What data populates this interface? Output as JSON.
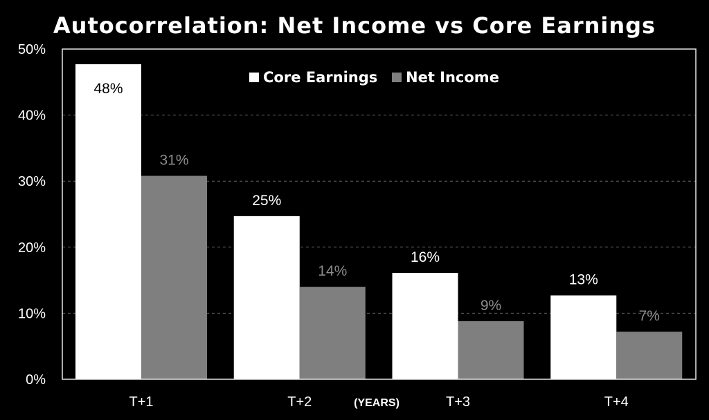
{
  "chart_data": {
    "type": "bar",
    "title": "Autocorrelation: Net Income vs Core Earnings",
    "xlabel": "(YEARS)",
    "ylabel": "",
    "categories": [
      "T+1",
      "T+2",
      "T+3",
      "T+4"
    ],
    "series": [
      {
        "name": "Core Earnings",
        "values": [
          47.7,
          24.7,
          16.1,
          12.7
        ],
        "labels": [
          "48%",
          "25%",
          "16%",
          "13%"
        ],
        "color": "#ffffff",
        "label_color": "#ffffff"
      },
      {
        "name": "Net Income",
        "values": [
          30.8,
          14.0,
          8.8,
          7.2
        ],
        "labels": [
          "31%",
          "14%",
          "9%",
          "7%"
        ],
        "color": "#7f7f7f",
        "label_color": "#8c8c8c"
      }
    ],
    "ylim": [
      0,
      50
    ],
    "yticks": [
      0,
      10,
      20,
      30,
      40,
      50
    ],
    "ytick_labels": [
      "0%",
      "10%",
      "20%",
      "30%",
      "40%",
      "50%"
    ],
    "grid": true,
    "legend_position": "top-center",
    "background": "#000000"
  }
}
